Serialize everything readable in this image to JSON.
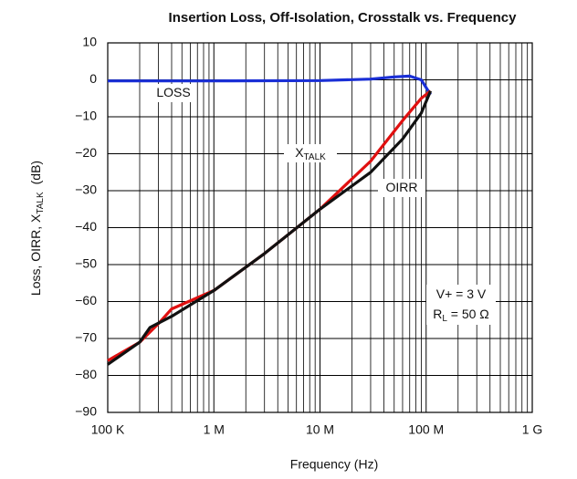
{
  "chart_data": {
    "type": "line",
    "title": "Insertion Loss, Off-Isolation, Crosstalk vs. Frequency",
    "x_label": "Frequency (Hz)",
    "y_label": {
      "main": "Loss, OIRR, X",
      "sub": "TALK",
      "tail": "(dB)"
    },
    "x_scale": "log",
    "grid": true,
    "xlim": [
      100000,
      1000000000
    ],
    "xticks": [
      {
        "value": 100000,
        "label": "100 K"
      },
      {
        "value": 1000000,
        "label": "1 M"
      },
      {
        "value": 10000000,
        "label": "10 M"
      },
      {
        "value": 100000000,
        "label": "100 M"
      },
      {
        "value": 1000000000,
        "label": "1 G"
      }
    ],
    "ylim": [
      10,
      -90
    ],
    "yticks": [
      10,
      0,
      {
        "value": -10,
        "label": "−10"
      },
      {
        "value": -20,
        "label": "−20"
      },
      {
        "value": -30,
        "label": "−30"
      },
      {
        "value": -40,
        "label": "−40"
      },
      {
        "value": -50,
        "label": "−50"
      },
      {
        "value": -60,
        "label": "−60"
      },
      {
        "value": -70,
        "label": "−70"
      },
      {
        "value": -80,
        "label": "−80"
      },
      {
        "value": -90,
        "label": "−90"
      }
    ],
    "series": [
      {
        "name": "LOSS",
        "color": "#1a2fd6",
        "x": [
          100000,
          1000000,
          10000000,
          30000000,
          50000000,
          70000000,
          90000000,
          110000000
        ],
        "values": [
          -0.3,
          -0.3,
          -0.2,
          0.2,
          0.8,
          1,
          0,
          -4
        ]
      },
      {
        "name": "XTALK",
        "color": "#e01010",
        "x": [
          100000,
          200000,
          300000,
          400000,
          1000000,
          3000000,
          10000000,
          30000000,
          60000000,
          90000000,
          110000000
        ],
        "values": [
          -76,
          -71,
          -66,
          -62,
          -57,
          -47,
          -35,
          -22,
          -11,
          -5,
          -3
        ]
      },
      {
        "name": "OIRR",
        "color": "#111111",
        "x": [
          100000,
          200000,
          250000,
          400000,
          1000000,
          3000000,
          10000000,
          30000000,
          60000000,
          90000000,
          110000000
        ],
        "values": [
          -77,
          -71,
          -67,
          -64,
          -57,
          -47,
          -35,
          -25,
          -16,
          -9,
          -3
        ]
      }
    ],
    "annotations": [
      {
        "text": "LOSS"
      },
      {
        "text": "X",
        "sub": "TALK"
      },
      {
        "text": "OIRR"
      },
      {
        "text": "V+ = 3 V"
      },
      {
        "text": "R",
        "sub": "L",
        "tail": " = 50 Ω"
      }
    ]
  }
}
